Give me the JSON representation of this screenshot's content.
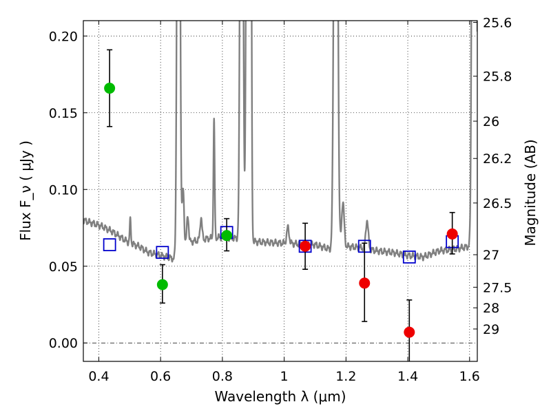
{
  "chart_data": {
    "type": "scatter",
    "xlabel": "Wavelength  λ (μm)",
    "ylabel": "Flux  F_ν  ( μJy )",
    "ylabel_right": "Magnitude (AB)",
    "xlim": [
      0.35,
      1.625
    ],
    "ylim": [
      -0.012,
      0.21
    ],
    "grid": true,
    "x_ticks": [
      0.4,
      0.6,
      0.8,
      1.0,
      1.2,
      1.4,
      1.6
    ],
    "x_tick_labels": [
      "0.4",
      "0.6",
      "0.8",
      "1",
      "1.2",
      "1.4",
      "1.6"
    ],
    "y_ticks": [
      0.0,
      0.05,
      0.1,
      0.15,
      0.2
    ],
    "y_tick_labels": [
      "0.00",
      "0.05",
      "0.10",
      "0.15",
      "0.20"
    ],
    "right_ticks": [
      {
        "mag": "25.6",
        "flux": 0.2089
      },
      {
        "mag": "25.8",
        "flux": 0.1738
      },
      {
        "mag": "26",
        "flux": 0.1445
      },
      {
        "mag": "26.2",
        "flux": 0.1202
      },
      {
        "mag": "26.5",
        "flux": 0.0912
      },
      {
        "mag": "27",
        "flux": 0.0575
      },
      {
        "mag": "27.5",
        "flux": 0.0363
      },
      {
        "mag": "28",
        "flux": 0.0229
      },
      {
        "mag": "29",
        "flux": 0.0091
      }
    ],
    "colors": {
      "green": "#00bb00",
      "red": "#ee0000",
      "blue": "#0000cc",
      "spectrum": "#808080"
    },
    "series": [
      {
        "kind": "points",
        "color": "green",
        "points": [
          {
            "x": 0.435,
            "y": 0.166,
            "lo": 0.141,
            "hi": 0.191
          },
          {
            "x": 0.606,
            "y": 0.038,
            "lo": 0.026,
            "hi": 0.051
          },
          {
            "x": 0.814,
            "y": 0.07,
            "lo": 0.06,
            "hi": 0.081
          }
        ]
      },
      {
        "kind": "points",
        "color": "red",
        "points": [
          {
            "x": 1.068,
            "y": 0.063,
            "lo": 0.048,
            "hi": 0.078
          },
          {
            "x": 1.26,
            "y": 0.039,
            "lo": 0.014,
            "hi": 0.065
          },
          {
            "x": 1.405,
            "y": 0.007,
            "lo": -0.013,
            "hi": 0.028
          },
          {
            "x": 1.544,
            "y": 0.071,
            "lo": 0.058,
            "hi": 0.085
          }
        ]
      },
      {
        "kind": "model_photometry",
        "color": "blue",
        "points": [
          {
            "x": 0.435,
            "y": 0.064
          },
          {
            "x": 0.606,
            "y": 0.059
          },
          {
            "x": 0.814,
            "y": 0.072
          },
          {
            "x": 1.068,
            "y": 0.063
          },
          {
            "x": 1.26,
            "y": 0.063
          },
          {
            "x": 1.405,
            "y": 0.056
          },
          {
            "x": 1.544,
            "y": 0.066
          }
        ]
      },
      {
        "kind": "spectrum",
        "color": "spectrum",
        "continuum": [
          [
            0.35,
            0.08
          ],
          [
            0.38,
            0.078
          ],
          [
            0.41,
            0.076
          ],
          [
            0.44,
            0.073
          ],
          [
            0.47,
            0.069
          ],
          [
            0.5,
            0.065
          ],
          [
            0.53,
            0.063
          ],
          [
            0.56,
            0.059
          ],
          [
            0.6,
            0.057
          ],
          [
            0.64,
            0.055
          ],
          [
            0.655,
            0.053
          ],
          [
            0.665,
            0.063
          ],
          [
            0.7,
            0.066
          ],
          [
            0.75,
            0.068
          ],
          [
            0.8,
            0.069
          ],
          [
            0.85,
            0.068
          ],
          [
            0.9,
            0.066
          ],
          [
            1.0,
            0.065
          ],
          [
            1.1,
            0.064
          ],
          [
            1.15,
            0.061
          ],
          [
            1.2,
            0.063
          ],
          [
            1.25,
            0.062
          ],
          [
            1.3,
            0.06
          ],
          [
            1.35,
            0.059
          ],
          [
            1.4,
            0.057
          ],
          [
            1.45,
            0.056
          ],
          [
            1.5,
            0.06
          ],
          [
            1.55,
            0.061
          ],
          [
            1.6,
            0.063
          ],
          [
            1.625,
            0.065
          ]
        ],
        "lines": [
          {
            "x": 0.502,
            "peak": 0.08,
            "width": 0.002
          },
          {
            "x": 0.658,
            "peak": 0.6,
            "width": 0.004
          },
          {
            "x": 0.673,
            "peak": 0.1,
            "width": 0.003
          },
          {
            "x": 0.688,
            "peak": 0.083,
            "width": 0.003
          },
          {
            "x": 0.731,
            "peak": 0.082,
            "width": 0.003
          },
          {
            "x": 0.773,
            "peak": 0.145,
            "width": 0.002
          },
          {
            "x": 0.862,
            "peak": 0.6,
            "width": 0.004
          },
          {
            "x": 0.882,
            "peak": 0.6,
            "width": 0.004
          },
          {
            "x": 0.89,
            "peak": 0.6,
            "width": 0.003
          },
          {
            "x": 1.012,
            "peak": 0.075,
            "width": 0.004
          },
          {
            "x": 1.167,
            "peak": 0.6,
            "width": 0.005
          },
          {
            "x": 1.19,
            "peak": 0.092,
            "width": 0.004
          },
          {
            "x": 1.268,
            "peak": 0.08,
            "width": 0.004
          },
          {
            "x": 1.612,
            "peak": 0.6,
            "width": 0.004
          },
          {
            "x": 1.62,
            "peak": 0.6,
            "width": 0.003
          }
        ]
      }
    ]
  }
}
